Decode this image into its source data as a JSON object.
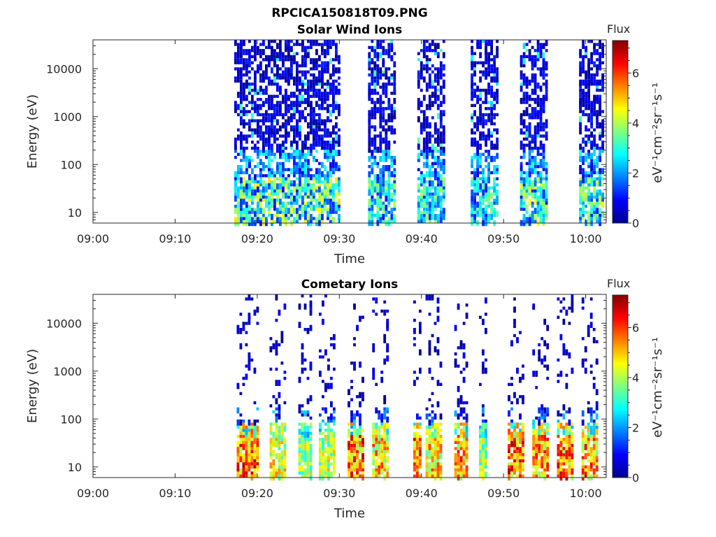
{
  "figure": {
    "title": "RPCICA150818T09.PNG"
  },
  "colors": {
    "colormap": [
      "#00008f",
      "#0000ff",
      "#0080ff",
      "#00ffff",
      "#80ff80",
      "#ffff00",
      "#ff8000",
      "#ff0000",
      "#800000"
    ]
  },
  "chart_data": [
    {
      "type": "heatmap",
      "title": "Solar Wind Ions",
      "xlabel": "Time",
      "ylabel": "Energy (eV)",
      "x_ticks": [
        "09:00",
        "09:10",
        "09:20",
        "09:30",
        "09:40",
        "09:50",
        "10:00"
      ],
      "y_ticks": [
        "10",
        "100",
        "1000",
        "10000"
      ],
      "y_scale": "log",
      "xlim_minutes": [
        0,
        62.5
      ],
      "ylim": [
        6,
        40000
      ],
      "colorbar": {
        "label": "Flux",
        "units": "eV⁻¹cm⁻²sr⁻¹s⁻¹",
        "ticks": [
          "0",
          "2",
          "4",
          "6"
        ],
        "range": [
          0,
          7.3
        ]
      },
      "bursts_minutes": [
        {
          "start": 17.2,
          "end": 30.0,
          "peak": 4.8
        },
        {
          "start": 33.5,
          "end": 36.6,
          "peak": 4.2
        },
        {
          "start": 39.5,
          "end": 42.8,
          "peak": 4.0
        },
        {
          "start": 46.0,
          "end": 49.3,
          "peak": 3.8
        },
        {
          "start": 52.0,
          "end": 55.4,
          "peak": 4.6
        },
        {
          "start": 59.2,
          "end": 62.0,
          "peak": 4.4
        }
      ]
    },
    {
      "type": "heatmap",
      "title": "Cometary Ions",
      "xlabel": "Time",
      "ylabel": "Energy (eV)",
      "x_ticks": [
        "09:00",
        "09:10",
        "09:20",
        "09:30",
        "09:40",
        "09:50",
        "10:00"
      ],
      "y_ticks": [
        "10",
        "100",
        "1000",
        "10000"
      ],
      "y_scale": "log",
      "xlim_minutes": [
        0,
        62.5
      ],
      "ylim": [
        6,
        40000
      ],
      "colorbar": {
        "label": "Flux",
        "units": "eV⁻¹cm⁻²sr⁻¹s⁻¹",
        "ticks": [
          "0",
          "2",
          "4",
          "6"
        ],
        "range": [
          0,
          7.3
        ]
      },
      "bursts_minutes": [
        {
          "start": 17.5,
          "end": 20.0,
          "peak": 7.0
        },
        {
          "start": 21.5,
          "end": 23.5,
          "peak": 5.5
        },
        {
          "start": 25.0,
          "end": 26.5,
          "peak": 5.0
        },
        {
          "start": 27.5,
          "end": 29.5,
          "peak": 5.2
        },
        {
          "start": 31.0,
          "end": 33.0,
          "peak": 7.0
        },
        {
          "start": 34.0,
          "end": 36.0,
          "peak": 6.2
        },
        {
          "start": 39.0,
          "end": 39.8,
          "peak": 6.8
        },
        {
          "start": 40.5,
          "end": 42.5,
          "peak": 6.0
        },
        {
          "start": 44.0,
          "end": 45.5,
          "peak": 6.5
        },
        {
          "start": 47.0,
          "end": 48.0,
          "peak": 5.0
        },
        {
          "start": 50.5,
          "end": 52.5,
          "peak": 7.0
        },
        {
          "start": 53.5,
          "end": 55.5,
          "peak": 6.5
        },
        {
          "start": 56.5,
          "end": 58.5,
          "peak": 6.8
        },
        {
          "start": 59.5,
          "end": 61.5,
          "peak": 6.5
        }
      ]
    }
  ]
}
